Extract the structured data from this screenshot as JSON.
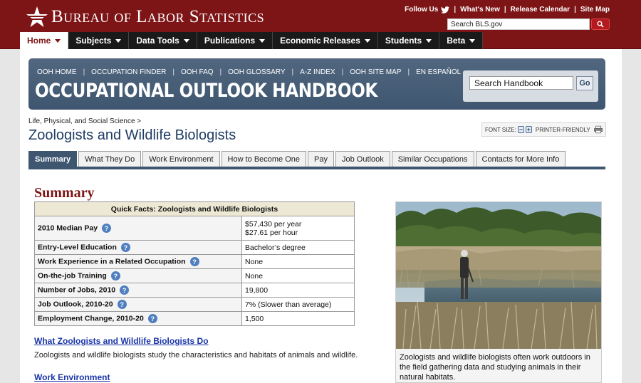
{
  "header": {
    "logo_text": "Bureau of Labor Statistics",
    "top_links": [
      "Follow Us",
      "What's New",
      "Release Calendar",
      "Site Map"
    ],
    "search_placeholder": "Search BLS.gov",
    "nav": [
      "Home",
      "Subjects",
      "Data Tools",
      "Publications",
      "Economic Releases",
      "Students",
      "Beta"
    ],
    "accent": "#7d1416"
  },
  "ooh": {
    "links": [
      "OOH HOME",
      "OCCUPATION FINDER",
      "OOH FAQ",
      "OOH GLOSSARY",
      "A-Z INDEX",
      "OOH SITE MAP",
      "EN ESPAÑOL"
    ],
    "title": "OCCUPATIONAL OUTLOOK HANDBOOK",
    "search_value": "Search Handbook",
    "go_label": "Go"
  },
  "breadcrumb": "Life, Physical, and Social Science >",
  "page_title": "Zoologists and Wildlife Biologists",
  "tools": {
    "font_size_label": "FONT SIZE:",
    "printer_label": "PRINTER-FRIENDLY"
  },
  "tabs": [
    "Summary",
    "What They Do",
    "Work Environment",
    "How to Become One",
    "Pay",
    "Job Outlook",
    "Similar Occupations",
    "Contacts for More Info"
  ],
  "summary": {
    "heading": "Summary",
    "table_title": "Quick Facts: Zoologists and Wildlife Biologists",
    "rows": [
      {
        "label": "2010 Median Pay",
        "value": "$57,430 per year",
        "value2": "$27.61 per hour"
      },
      {
        "label": "Entry-Level Education",
        "value": "Bachelor’s degree"
      },
      {
        "label": "Work Experience in a Related Occupation",
        "value": "None"
      },
      {
        "label": "On-the-job Training",
        "value": "None"
      },
      {
        "label": "Number of Jobs, 2010",
        "value": "19,800"
      },
      {
        "label": "Job Outlook, 2010-20",
        "value": "7% (Slower than average)"
      },
      {
        "label": "Employment Change, 2010-20",
        "value": "1,500"
      }
    ],
    "what_they_do_link": "What Zoologists and Wildlife Biologists Do",
    "what_they_do_text": "Zoologists and wildlife biologists study the characteristics and habitats of animals and wildlife.",
    "work_env_link": "Work Environment",
    "photo_caption": "Zoologists and wildlife biologists often work outdoors in the field gathering data and studying animals in their natural habitats."
  }
}
